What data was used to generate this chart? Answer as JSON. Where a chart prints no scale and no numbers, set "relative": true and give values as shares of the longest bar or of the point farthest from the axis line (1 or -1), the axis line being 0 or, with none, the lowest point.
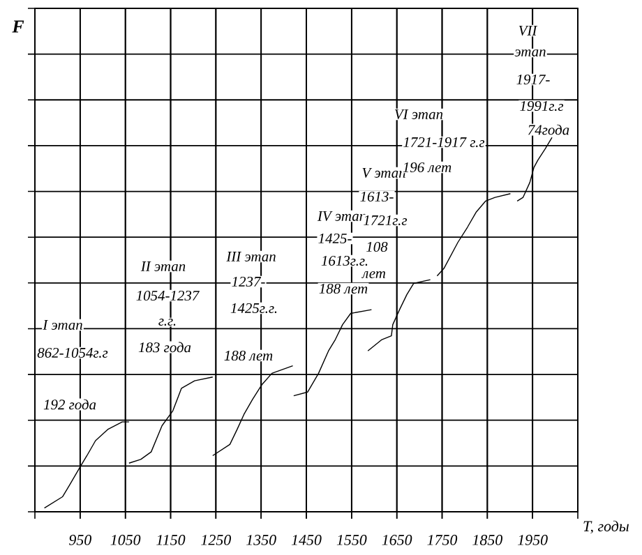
{
  "chart_data": {
    "type": "line",
    "relative": true,
    "xlabel": "T, годы",
    "xlim": [
      850,
      2050
    ],
    "xticks": [
      950,
      1050,
      1150,
      1250,
      1350,
      1450,
      1550,
      1650,
      1750,
      1850,
      1950
    ],
    "grid": true,
    "line_style": "solid",
    "series": [
      {
        "color": "#000000",
        "x": [
          871,
          911,
          926,
          950,
          965,
          984,
          1011,
          1043,
          1058
        ],
        "values": [
          0.01,
          0.04,
          0.07,
          0.12,
          0.15,
          0.19,
          0.22,
          0.24,
          0.24
        ]
      },
      {
        "color": "#000000",
        "x": [
          1058,
          1084,
          1107,
          1131,
          1155,
          1174,
          1203,
          1243
        ],
        "values": [
          0.13,
          0.14,
          0.16,
          0.23,
          0.27,
          0.33,
          0.35,
          0.36
        ]
      },
      {
        "color": "#000000",
        "x": [
          1243,
          1281,
          1297,
          1312,
          1331,
          1352,
          1374,
          1420
        ],
        "values": [
          0.15,
          0.18,
          0.22,
          0.26,
          0.3,
          0.34,
          0.37,
          0.39
        ]
      },
      {
        "color": "#000000",
        "x": [
          1422,
          1453,
          1477,
          1499,
          1514,
          1530,
          1548,
          1594
        ],
        "values": [
          0.31,
          0.32,
          0.37,
          0.43,
          0.46,
          0.5,
          0.53,
          0.54
        ]
      },
      {
        "color": "#000000",
        "x": [
          1586,
          1617,
          1638,
          1641,
          1656,
          1672,
          1687,
          1724
        ],
        "values": [
          0.43,
          0.46,
          0.47,
          0.5,
          0.54,
          0.58,
          0.61,
          0.62
        ]
      },
      {
        "color": "#000000",
        "x": [
          1739,
          1754,
          1785,
          1806,
          1825,
          1846,
          1867,
          1901
        ],
        "values": [
          0.63,
          0.65,
          0.72,
          0.76,
          0.8,
          0.83,
          0.84,
          0.85
        ]
      },
      {
        "color": "#000000",
        "x": [
          1916,
          1929,
          1944,
          1953,
          1962,
          1978,
          1993
        ],
        "values": [
          0.83,
          0.84,
          0.88,
          0.92,
          0.94,
          0.97,
          1
        ]
      }
    ],
    "annotations": [
      "I этап",
      "862-1054г.г",
      "192 года",
      "II этап",
      "1054-1237",
      "г.г.",
      "183 года",
      "III этап",
      "1237-",
      "1425г.г.",
      "188 лет",
      "IV этап",
      "1425-",
      "1613г.г.",
      "188 лет",
      "V этап",
      "1613-",
      "1721г.г",
      "108",
      "лет",
      "VI этап",
      "1721-1917 г.г",
      "196 лет",
      "VII",
      "этап",
      "1917-",
      "1991г.г",
      "74года",
      "F"
    ]
  }
}
